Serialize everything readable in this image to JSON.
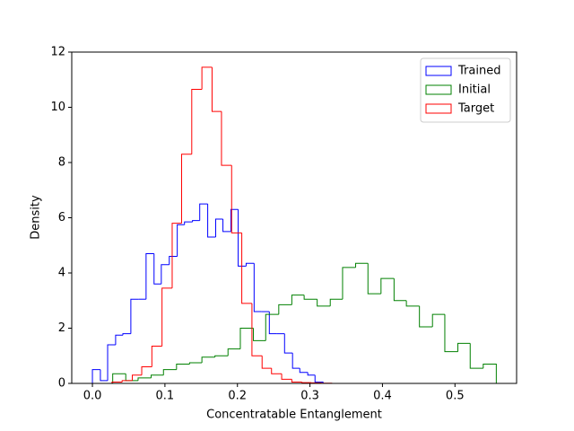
{
  "chart_data": {
    "type": "histogram",
    "xlabel": "Concentratable Entanglement",
    "ylabel": "Density",
    "xlim": [
      -0.0285,
      0.585
    ],
    "ylim": [
      0,
      12
    ],
    "xticks": [
      {
        "value": 0,
        "label": "0.0"
      },
      0.1,
      0.2,
      0.3,
      0.4,
      0.5
    ],
    "yticks": [
      0,
      2,
      4,
      6,
      8,
      10,
      12
    ],
    "legend": "upper right",
    "series": [
      {
        "name": "Trained",
        "color": "#0000ff",
        "bins": [
          0.0,
          0.011,
          0.021,
          0.032,
          0.042,
          0.053,
          0.064,
          0.074,
          0.085,
          0.095,
          0.106,
          0.117,
          0.127,
          0.138,
          0.148,
          0.159,
          0.17,
          0.18,
          0.191,
          0.201,
          0.212,
          0.223,
          0.233,
          0.244,
          0.254,
          0.265,
          0.276,
          0.286,
          0.297,
          0.307,
          0.318
        ],
        "values": [
          0.5,
          0.1,
          1.4,
          1.75,
          1.8,
          3.05,
          3.05,
          4.7,
          3.6,
          4.3,
          4.6,
          5.75,
          5.85,
          5.9,
          6.5,
          5.3,
          5.95,
          5.5,
          6.3,
          4.25,
          4.35,
          2.6,
          2.6,
          1.8,
          1.8,
          1.1,
          0.55,
          0.4,
          0.3,
          0.05
        ]
      },
      {
        "name": "Initial",
        "color": "#008000",
        "bins": [
          0.028,
          0.046,
          0.063,
          0.081,
          0.098,
          0.116,
          0.134,
          0.151,
          0.169,
          0.187,
          0.204,
          0.222,
          0.239,
          0.257,
          0.275,
          0.292,
          0.31,
          0.328,
          0.345,
          0.363,
          0.38,
          0.398,
          0.416,
          0.433,
          0.451,
          0.469,
          0.486,
          0.504,
          0.521,
          0.539,
          0.557
        ],
        "values": [
          0.35,
          0.1,
          0.2,
          0.3,
          0.5,
          0.7,
          0.75,
          0.95,
          1.0,
          1.25,
          2.0,
          1.55,
          2.5,
          2.85,
          3.2,
          3.05,
          2.8,
          3.05,
          4.2,
          4.35,
          3.25,
          3.8,
          3.0,
          2.8,
          2.05,
          2.5,
          1.15,
          1.45,
          0.55,
          0.7
        ]
      },
      {
        "name": "Target",
        "color": "#ff0000",
        "bins": [
          0.027,
          0.041,
          0.055,
          0.068,
          0.082,
          0.096,
          0.11,
          0.123,
          0.137,
          0.151,
          0.165,
          0.178,
          0.192,
          0.206,
          0.22,
          0.234,
          0.247,
          0.261,
          0.275,
          0.289,
          0.302,
          0.316,
          0.33
        ],
        "values": [
          0.05,
          0.1,
          0.3,
          0.6,
          1.35,
          3.45,
          5.8,
          8.3,
          10.65,
          11.45,
          9.85,
          7.9,
          5.45,
          2.9,
          1.0,
          0.55,
          0.35,
          0.15,
          0.05,
          0.03,
          0.02,
          0.01
        ]
      }
    ]
  }
}
